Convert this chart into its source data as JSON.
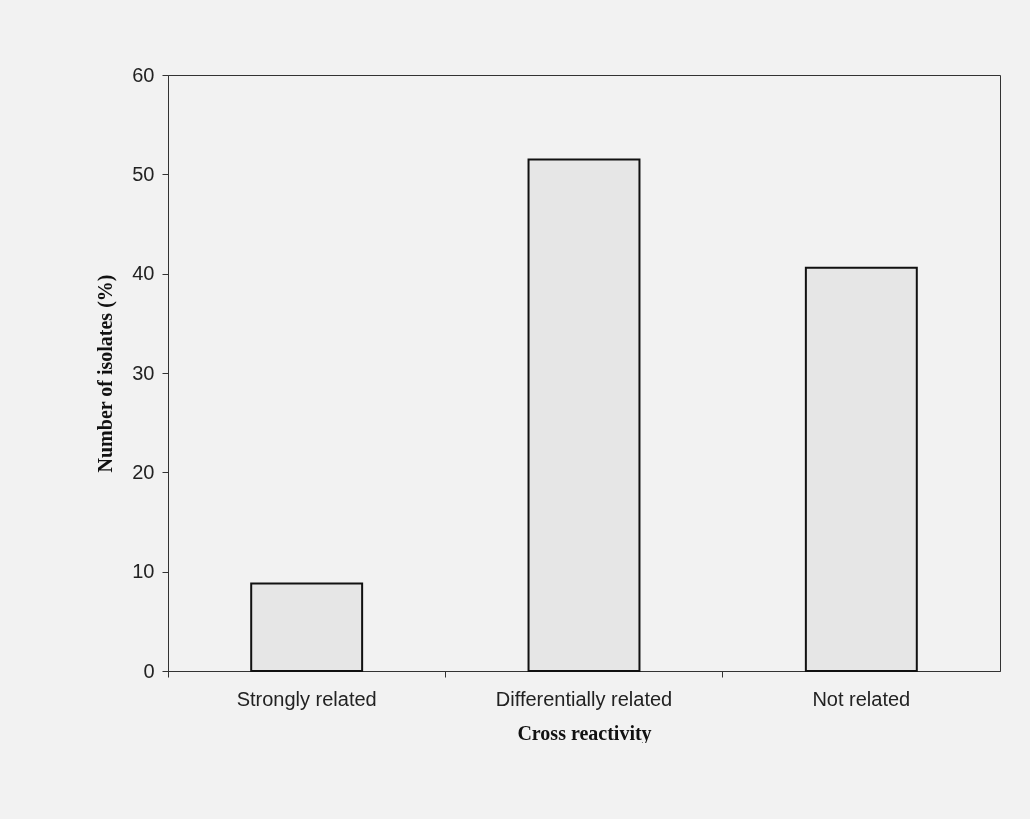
{
  "chart_data": {
    "type": "bar",
    "xlabel": "Cross reactivity",
    "ylabel": "Number of isolates (%)",
    "categories": [
      "Strongly related",
      "Differentially related",
      "Not related"
    ],
    "values": [
      8.8,
      51.5,
      40.6
    ],
    "color": "#e6e6e6",
    "ylim": [
      0,
      60
    ],
    "yticks": [
      0,
      10,
      20,
      30,
      40,
      50,
      60
    ],
    "grid": false,
    "legend": false
  }
}
